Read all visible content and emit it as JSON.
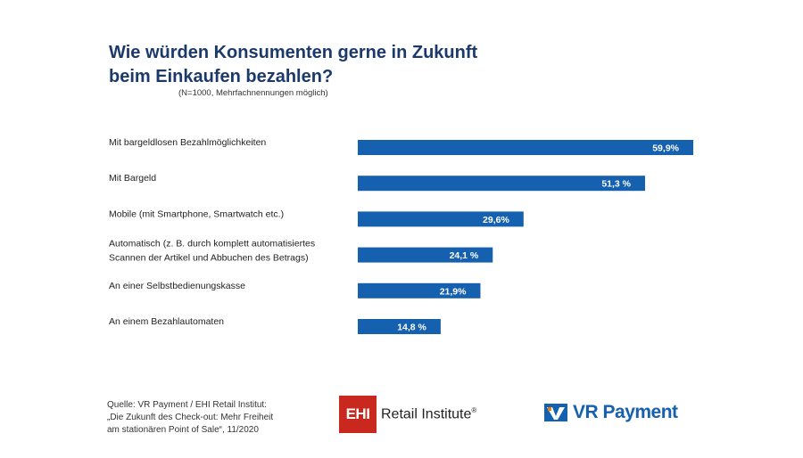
{
  "title_line1": "Wie würden Konsumenten gerne in Zukunft",
  "title_line2": "beim Einkaufen bezahlen?",
  "subtitle": "(N=1000, Mehrfachnennungen möglich)",
  "colors": {
    "bar": "#1660b0",
    "title": "#1b3a6b",
    "ehi_red": "#c8281e",
    "vr_blue": "#1660b0"
  },
  "chart_data": {
    "type": "bar",
    "orientation": "horizontal",
    "categories": [
      [
        "Mit bargeldlosen Bezahlmöglichkeiten"
      ],
      [
        "Mit Bargeld"
      ],
      [
        "Mobile (mit Smartphone, Smartwatch etc.)"
      ],
      [
        "Automatisch (z. B. durch komplett automatisiertes",
        "Scannen der Artikel und Abbuchen des Betrags)"
      ],
      [
        "An einer Selbstbedienungskasse"
      ],
      [
        "An einem Bezahlautomaten"
      ]
    ],
    "values": [
      59.9,
      51.3,
      29.6,
      24.1,
      21.9,
      14.8
    ],
    "value_labels": [
      "59,9%",
      "51,3 %",
      "29,6%",
      "24,1 %",
      "21,9%",
      "14,8 %"
    ],
    "unit": "%",
    "xlim": [
      0,
      100
    ],
    "grid": false,
    "axes_visible": false
  },
  "footer": {
    "source_line1": "Quelle: VR Payment / EHI Retail Institut:",
    "source_line2": "„Die Zukunft des Check-out: Mehr Freiheit",
    "source_line3": "am stationären Point of Sale“, 11/2020"
  },
  "logos": {
    "ehi_mark": "EHI",
    "ehi_name": "Retail Institute",
    "ehi_reg": "®",
    "vr_name": "VR Payment"
  }
}
